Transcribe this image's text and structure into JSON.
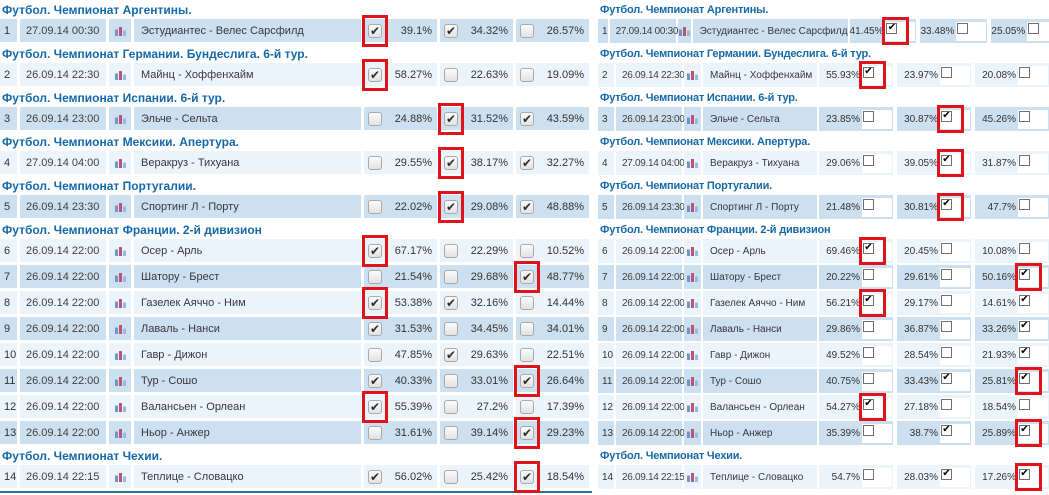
{
  "colors": {
    "row_dark": "#cde0ef",
    "row_light": "#ecf4fb",
    "header_text": "#1569a9",
    "highlight_red": "#e0131a",
    "bottom_line": "#2f6e93",
    "checkbox_check": "#2e2e2e"
  },
  "icons": {
    "stats_icon": "bar-chart-icon",
    "check_glyph": "✔"
  },
  "panels": [
    {
      "id": "left",
      "layout": "checkbox-first",
      "sections": [
        {
          "header": "Футбол. Чемпионат Аргентины.",
          "rows": [
            {
              "num": 1,
              "date": "27.09.14 00:30",
              "match": "Эстудиантес - Велес Сарсфилд",
              "cells": [
                {
                  "pct": "39.1%",
                  "checked": true,
                  "highlight": true
                },
                {
                  "pct": "34.32%",
                  "checked": true,
                  "highlight": false
                },
                {
                  "pct": "26.57%",
                  "checked": false,
                  "highlight": false
                }
              ]
            }
          ]
        },
        {
          "header": "Футбол. Чемпионат Германии. Бундеслига. 6-й тур.",
          "rows": [
            {
              "num": 2,
              "date": "26.09.14 22:30",
              "match": "Майнц - Хоффенхайм",
              "cells": [
                {
                  "pct": "58.27%",
                  "checked": true,
                  "highlight": true
                },
                {
                  "pct": "22.63%",
                  "checked": false,
                  "highlight": false
                },
                {
                  "pct": "19.09%",
                  "checked": false,
                  "highlight": false
                }
              ]
            }
          ]
        },
        {
          "header": "Футбол. Чемпионат Испании. 6-й тур.",
          "rows": [
            {
              "num": 3,
              "date": "26.09.14 23:00",
              "match": "Эльче - Сельта",
              "cells": [
                {
                  "pct": "24.88%",
                  "checked": false,
                  "highlight": false
                },
                {
                  "pct": "31.52%",
                  "checked": true,
                  "highlight": true
                },
                {
                  "pct": "43.59%",
                  "checked": true,
                  "highlight": false
                }
              ]
            }
          ]
        },
        {
          "header": "Футбол. Чемпионат Мексики. Апертура.",
          "rows": [
            {
              "num": 4,
              "date": "27.09.14 04:00",
              "match": "Веракруз - Тихуана",
              "cells": [
                {
                  "pct": "29.55%",
                  "checked": false,
                  "highlight": false
                },
                {
                  "pct": "38.17%",
                  "checked": true,
                  "highlight": true
                },
                {
                  "pct": "32.27%",
                  "checked": true,
                  "highlight": false
                }
              ]
            }
          ]
        },
        {
          "header": "Футбол. Чемпионат Португалии.",
          "rows": [
            {
              "num": 5,
              "date": "26.09.14 23:30",
              "match": "Спортинг Л - Порту",
              "cells": [
                {
                  "pct": "22.02%",
                  "checked": false,
                  "highlight": false
                },
                {
                  "pct": "29.08%",
                  "checked": true,
                  "highlight": true
                },
                {
                  "pct": "48.88%",
                  "checked": true,
                  "highlight": false
                }
              ]
            }
          ]
        },
        {
          "header": "Футбол. Чемпионат Франции. 2-й дивизион",
          "rows": [
            {
              "num": 6,
              "date": "26.09.14 22:00",
              "match": "Осер - Арль",
              "cells": [
                {
                  "pct": "67.17%",
                  "checked": true,
                  "highlight": true
                },
                {
                  "pct": "22.29%",
                  "checked": false,
                  "highlight": false
                },
                {
                  "pct": "10.52%",
                  "checked": false,
                  "highlight": false
                }
              ]
            },
            {
              "num": 7,
              "date": "26.09.14 22:00",
              "match": "Шатору - Брест",
              "cells": [
                {
                  "pct": "21.54%",
                  "checked": false,
                  "highlight": false
                },
                {
                  "pct": "29.68%",
                  "checked": false,
                  "highlight": false
                },
                {
                  "pct": "48.77%",
                  "checked": true,
                  "highlight": true
                }
              ]
            },
            {
              "num": 8,
              "date": "26.09.14 22:00",
              "match": "Газелек Аяччо - Ним",
              "cells": [
                {
                  "pct": "53.38%",
                  "checked": true,
                  "highlight": true
                },
                {
                  "pct": "32.16%",
                  "checked": true,
                  "highlight": false
                },
                {
                  "pct": "14.44%",
                  "checked": false,
                  "highlight": false
                }
              ]
            },
            {
              "num": 9,
              "date": "26.09.14 22:00",
              "match": "Лаваль - Нанси",
              "cells": [
                {
                  "pct": "31.53%",
                  "checked": true,
                  "highlight": false
                },
                {
                  "pct": "34.45%",
                  "checked": false,
                  "highlight": false
                },
                {
                  "pct": "34.01%",
                  "checked": false,
                  "highlight": false
                }
              ]
            },
            {
              "num": 10,
              "date": "26.09.14 22:00",
              "match": "Гавр - Дижон",
              "cells": [
                {
                  "pct": "47.85%",
                  "checked": false,
                  "highlight": false
                },
                {
                  "pct": "29.63%",
                  "checked": true,
                  "highlight": false
                },
                {
                  "pct": "22.51%",
                  "checked": false,
                  "highlight": false
                }
              ]
            },
            {
              "num": 11,
              "date": "26.09.14 22:00",
              "match": "Тур - Сошо",
              "cells": [
                {
                  "pct": "40.33%",
                  "checked": true,
                  "highlight": false
                },
                {
                  "pct": "33.01%",
                  "checked": false,
                  "highlight": false
                },
                {
                  "pct": "26.64%",
                  "checked": true,
                  "highlight": true
                }
              ]
            },
            {
              "num": 12,
              "date": "26.09.14 22:00",
              "match": "Валансьен - Орлеан",
              "cells": [
                {
                  "pct": "55.39%",
                  "checked": true,
                  "highlight": true
                },
                {
                  "pct": "27.2%",
                  "checked": false,
                  "highlight": false
                },
                {
                  "pct": "17.39%",
                  "checked": false,
                  "highlight": false
                }
              ]
            },
            {
              "num": 13,
              "date": "26.09.14 22:00",
              "match": "Ньор - Анжер",
              "cells": [
                {
                  "pct": "31.61%",
                  "checked": false,
                  "highlight": false
                },
                {
                  "pct": "39.14%",
                  "checked": false,
                  "highlight": false
                },
                {
                  "pct": "29.23%",
                  "checked": true,
                  "highlight": true
                }
              ]
            }
          ]
        },
        {
          "header": "Футбол. Чемпионат Чехии.",
          "rows": [
            {
              "num": 14,
              "date": "26.09.14 22:15",
              "match": "Теплице - Словацко",
              "cells": [
                {
                  "pct": "56.02%",
                  "checked": true,
                  "highlight": false
                },
                {
                  "pct": "25.42%",
                  "checked": false,
                  "highlight": false
                },
                {
                  "pct": "18.54%",
                  "checked": true,
                  "highlight": true
                }
              ]
            }
          ]
        }
      ]
    },
    {
      "id": "right",
      "layout": "percent-first",
      "sections": [
        {
          "header": "Футбол. Чемпионат Аргентины.",
          "rows": [
            {
              "num": 1,
              "date": "27.09.14 00:30",
              "match": "Эстудиантес - Велес Сарсфилд",
              "cells": [
                {
                  "pct": "41.45%",
                  "checked": true,
                  "highlight": true
                },
                {
                  "pct": "33.48%",
                  "checked": false,
                  "highlight": false
                },
                {
                  "pct": "25.05%",
                  "checked": false,
                  "highlight": false
                }
              ]
            }
          ]
        },
        {
          "header": "Футбол. Чемпионат Германии. Бундеслига. 6-й тур.",
          "rows": [
            {
              "num": 2,
              "date": "26.09.14 22:30",
              "match": "Майнц - Хоффенхайм",
              "cells": [
                {
                  "pct": "55.93%",
                  "checked": true,
                  "highlight": true
                },
                {
                  "pct": "23.97%",
                  "checked": false,
                  "highlight": false
                },
                {
                  "pct": "20.08%",
                  "checked": false,
                  "highlight": false
                }
              ]
            }
          ]
        },
        {
          "header": "Футбол. Чемпионат Испании. 6-й тур.",
          "rows": [
            {
              "num": 3,
              "date": "26.09.14 23:00",
              "match": "Эльче - Сельта",
              "cells": [
                {
                  "pct": "23.85%",
                  "checked": false,
                  "highlight": false
                },
                {
                  "pct": "30.87%",
                  "checked": true,
                  "highlight": true
                },
                {
                  "pct": "45.26%",
                  "checked": false,
                  "highlight": false
                }
              ]
            }
          ]
        },
        {
          "header": "Футбол. Чемпионат Мексики. Апертура.",
          "rows": [
            {
              "num": 4,
              "date": "27.09.14 04:00",
              "match": "Веракруз - Тихуана",
              "cells": [
                {
                  "pct": "29.06%",
                  "checked": false,
                  "highlight": false
                },
                {
                  "pct": "39.05%",
                  "checked": true,
                  "highlight": true
                },
                {
                  "pct": "31.87%",
                  "checked": false,
                  "highlight": false
                }
              ]
            }
          ]
        },
        {
          "header": "Футбол. Чемпионат Португалии.",
          "rows": [
            {
              "num": 5,
              "date": "26.09.14 23:30",
              "match": "Спортинг Л - Порту",
              "cells": [
                {
                  "pct": "21.48%",
                  "checked": false,
                  "highlight": false
                },
                {
                  "pct": "30.81%",
                  "checked": true,
                  "highlight": true
                },
                {
                  "pct": "47.7%",
                  "checked": false,
                  "highlight": false
                }
              ]
            }
          ]
        },
        {
          "header": "Футбол. Чемпионат Франции. 2-й дивизион",
          "rows": [
            {
              "num": 6,
              "date": "26.09.14 22:00",
              "match": "Осер - Арль",
              "cells": [
                {
                  "pct": "69.46%",
                  "checked": true,
                  "highlight": true
                },
                {
                  "pct": "20.45%",
                  "checked": false,
                  "highlight": false
                },
                {
                  "pct": "10.08%",
                  "checked": false,
                  "highlight": false
                }
              ]
            },
            {
              "num": 7,
              "date": "26.09.14 22:00",
              "match": "Шатору - Брест",
              "cells": [
                {
                  "pct": "20.22%",
                  "checked": false,
                  "highlight": false
                },
                {
                  "pct": "29.61%",
                  "checked": false,
                  "highlight": false
                },
                {
                  "pct": "50.16%",
                  "checked": true,
                  "highlight": true
                }
              ]
            },
            {
              "num": 8,
              "date": "26.09.14 22:00",
              "match": "Газелек Аяччо - Ним",
              "cells": [
                {
                  "pct": "56.21%",
                  "checked": true,
                  "highlight": true
                },
                {
                  "pct": "29.17%",
                  "checked": false,
                  "highlight": false
                },
                {
                  "pct": "14.61%",
                  "checked": true,
                  "highlight": false
                }
              ]
            },
            {
              "num": 9,
              "date": "26.09.14 22:00",
              "match": "Лаваль - Нанси",
              "cells": [
                {
                  "pct": "29.86%",
                  "checked": false,
                  "highlight": false
                },
                {
                  "pct": "36.87%",
                  "checked": false,
                  "highlight": false
                },
                {
                  "pct": "33.26%",
                  "checked": true,
                  "highlight": false
                }
              ]
            },
            {
              "num": 10,
              "date": "26.09.14 22:00",
              "match": "Гавр - Дижон",
              "cells": [
                {
                  "pct": "49.52%",
                  "checked": false,
                  "highlight": false
                },
                {
                  "pct": "28.54%",
                  "checked": false,
                  "highlight": false
                },
                {
                  "pct": "21.93%",
                  "checked": true,
                  "highlight": false
                }
              ]
            },
            {
              "num": 11,
              "date": "26.09.14 22:00",
              "match": "Тур - Сошо",
              "cells": [
                {
                  "pct": "40.75%",
                  "checked": false,
                  "highlight": false
                },
                {
                  "pct": "33.43%",
                  "checked": true,
                  "highlight": false
                },
                {
                  "pct": "25.81%",
                  "checked": true,
                  "highlight": true
                }
              ]
            },
            {
              "num": 12,
              "date": "26.09.14 22:00",
              "match": "Валансьен - Орлеан",
              "cells": [
                {
                  "pct": "54.27%",
                  "checked": true,
                  "highlight": true
                },
                {
                  "pct": "27.18%",
                  "checked": false,
                  "highlight": false
                },
                {
                  "pct": "18.54%",
                  "checked": false,
                  "highlight": false
                }
              ]
            },
            {
              "num": 13,
              "date": "26.09.14 22:00",
              "match": "Ньор - Анжер",
              "cells": [
                {
                  "pct": "35.39%",
                  "checked": false,
                  "highlight": false
                },
                {
                  "pct": "38.7%",
                  "checked": true,
                  "highlight": false
                },
                {
                  "pct": "25.89%",
                  "checked": true,
                  "highlight": true
                }
              ]
            }
          ]
        },
        {
          "header": "Футбол. Чемпионат Чехии.",
          "rows": [
            {
              "num": 14,
              "date": "26.09.14 22:15",
              "match": "Теплице - Словацко",
              "cells": [
                {
                  "pct": "54.7%",
                  "checked": false,
                  "highlight": false
                },
                {
                  "pct": "28.03%",
                  "checked": true,
                  "highlight": false
                },
                {
                  "pct": "17.26%",
                  "checked": true,
                  "highlight": true
                }
              ]
            }
          ]
        }
      ]
    }
  ]
}
